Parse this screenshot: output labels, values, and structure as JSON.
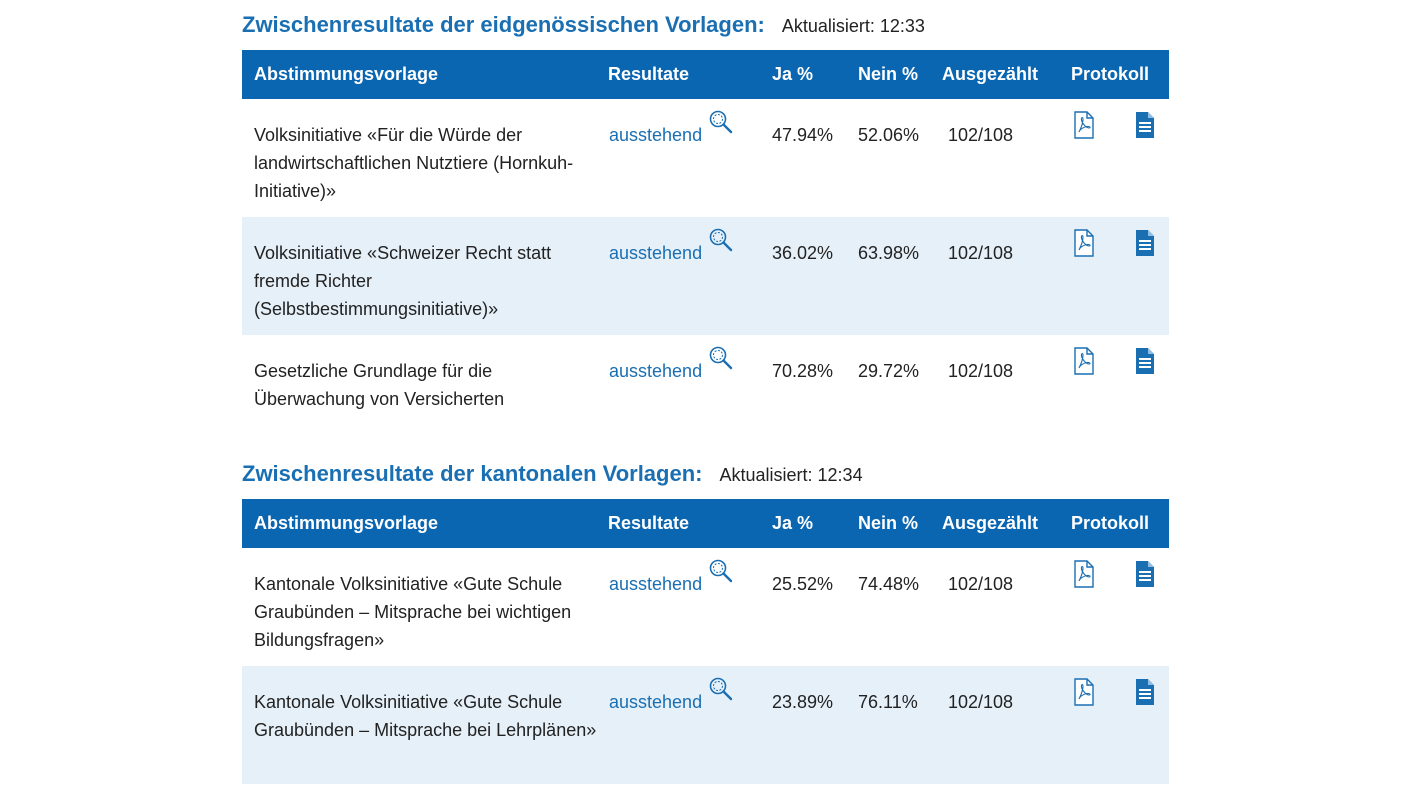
{
  "sections": [
    {
      "title": "Zwischenresultate der eidgenössischen Vorlagen:",
      "updated": "Aktualisiert: 12:33",
      "headers": {
        "vorlage": "Abstimmungsvorlage",
        "resultate": "Resultate",
        "ja": "Ja %",
        "nein": "Nein %",
        "ausgezaehlt": "Ausgezählt",
        "protokoll": "Protokoll"
      },
      "rows": [
        {
          "vorlage": "Volksinitiative «Für die Würde der landwirtschaftlichen Nutztiere (Hornkuh-Initiative)»",
          "resultat": "ausstehend",
          "ja": "47.94%",
          "nein": "52.06%",
          "ausgezaehlt": "102/108"
        },
        {
          "vorlage": "Volksinitiative «Schweizer Recht statt fremde Richter (Selbstbestimmungsinitiative)»",
          "resultat": "ausstehend",
          "ja": "36.02%",
          "nein": "63.98%",
          "ausgezaehlt": "102/108"
        },
        {
          "vorlage": "Gesetzliche Grundlage für die Überwachung von Versicherten",
          "resultat": "ausstehend",
          "ja": "70.28%",
          "nein": "29.72%",
          "ausgezaehlt": "102/108"
        }
      ]
    },
    {
      "title": "Zwischenresultate der kantonalen Vorlagen:",
      "updated": "Aktualisiert: 12:34",
      "headers": {
        "vorlage": "Abstimmungsvorlage",
        "resultate": "Resultate",
        "ja": "Ja %",
        "nein": "Nein %",
        "ausgezaehlt": "Ausgezählt",
        "protokoll": "Protokoll"
      },
      "rows": [
        {
          "vorlage": "Kantonale Volksinitiative «Gute Schule Graubünden – Mitsprache bei wichtigen Bildungsfragen»",
          "resultat": "ausstehend",
          "ja": "25.52%",
          "nein": "74.48%",
          "ausgezaehlt": "102/108"
        },
        {
          "vorlage": "Kantonale Volksinitiative «Gute Schule Graubünden – Mitsprache bei Lehrplänen»",
          "resultat": "ausstehend",
          "ja": "23.89%",
          "nein": "76.11%",
          "ausgezaehlt": "102/108"
        }
      ]
    }
  ],
  "icons": {
    "details": "magnifier-icon",
    "pdf": "pdf-icon",
    "document": "document-icon"
  },
  "colors": {
    "accent": "#1a6fb3",
    "header_bg": "#0b66b2",
    "alt_row_bg": "#e6f0f8"
  }
}
